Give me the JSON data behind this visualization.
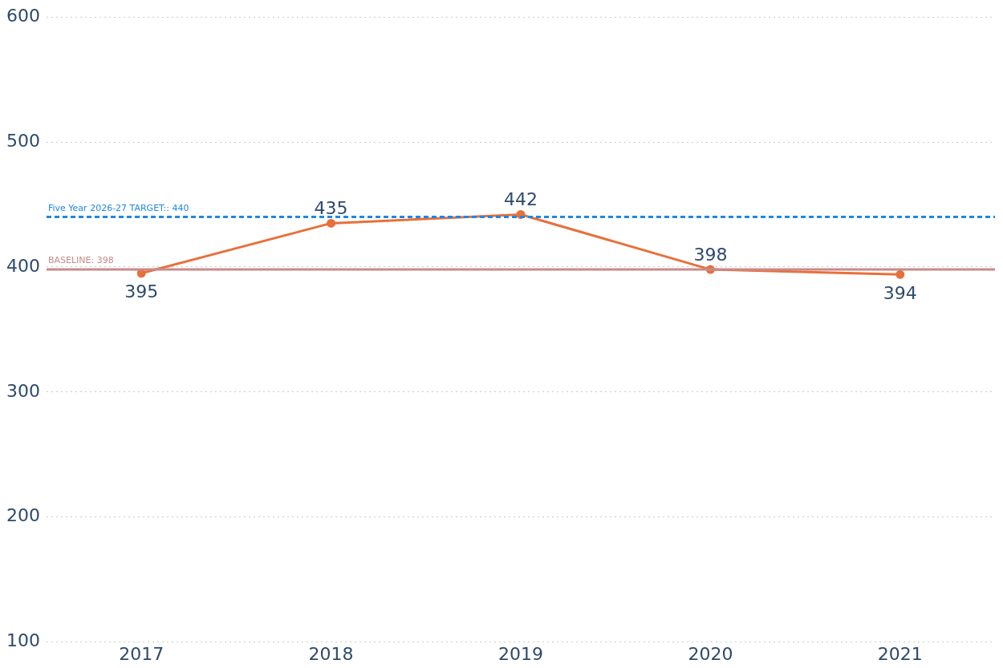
{
  "chart_data": {
    "type": "line",
    "categories": [
      "2017",
      "2018",
      "2019",
      "2020",
      "2021"
    ],
    "series": [
      {
        "color": "#e8703a",
        "values": [
          395,
          435,
          442,
          398,
          394
        ]
      }
    ],
    "ylim": [
      100,
      600
    ],
    "yticks": [
      100,
      200,
      300,
      400,
      500,
      600
    ],
    "grid": "y",
    "marker": "circle",
    "line_style": "solid",
    "data_labels": true,
    "legend": false,
    "ref_lines": [
      {
        "axis": "y",
        "value": 440,
        "label": "Five Year 2026-27 TARGET:: 440",
        "color": "#1e88e5",
        "line_style": "dashed"
      },
      {
        "axis": "y",
        "value": 398,
        "label": "BASELINE: 398",
        "color": "#c98a8a",
        "line_style": "solid"
      }
    ]
  }
}
